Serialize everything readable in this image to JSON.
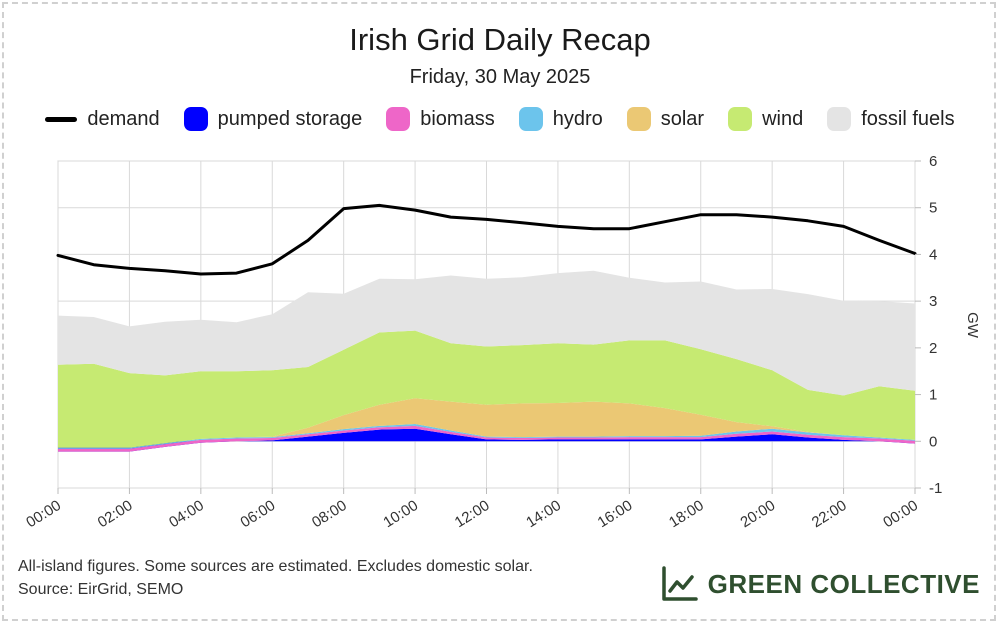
{
  "title": "Irish Grid Daily Recap",
  "subtitle": "Friday, 30 May 2025",
  "legend": [
    {
      "key": "demand",
      "label": "demand",
      "color": "#000000",
      "type": "line"
    },
    {
      "key": "pumped",
      "label": "pumped storage",
      "color": "#0000ff",
      "type": "area"
    },
    {
      "key": "biomass",
      "label": "biomass",
      "color": "#ee66c8",
      "type": "area"
    },
    {
      "key": "hydro",
      "label": "hydro",
      "color": "#6cc4ec",
      "type": "area"
    },
    {
      "key": "solar",
      "label": "solar",
      "color": "#ebc874",
      "type": "area"
    },
    {
      "key": "wind",
      "label": "wind",
      "color": "#c6ea72",
      "type": "area"
    },
    {
      "key": "fossil",
      "label": "fossil fuels",
      "color": "#e4e4e4",
      "type": "area"
    }
  ],
  "footnote": {
    "line1": "All-island figures. Some sources are estimated. Excludes domestic solar.",
    "line2": "Source: EirGrid, SEMO"
  },
  "brand": {
    "name": "GREEN COLLECTIVE",
    "color": "#2f4f2f",
    "icon": "trend-chart-icon"
  },
  "chart_data": {
    "type": "area",
    "stacked": true,
    "title": "Irish Grid Daily Recap",
    "subtitle": "Friday, 30 May 2025",
    "ylabel": "GW",
    "xlabel": "",
    "ylim": [
      -1,
      6
    ],
    "yticks": [
      "-1",
      "0",
      "1",
      "2",
      "3",
      "4",
      "5",
      "6"
    ],
    "xticks": [
      "00:00",
      "02:00",
      "04:00",
      "06:00",
      "08:00",
      "10:00",
      "12:00",
      "14:00",
      "16:00",
      "18:00",
      "20:00",
      "22:00",
      "00:00"
    ],
    "x_hours": [
      0,
      1,
      2,
      3,
      4,
      5,
      6,
      7,
      8,
      9,
      10,
      11,
      12,
      13,
      14,
      15,
      16,
      17,
      18,
      19,
      20,
      21,
      22,
      23,
      24
    ],
    "series": [
      {
        "name": "pumped storage",
        "values": [
          -0.22,
          -0.22,
          -0.22,
          -0.12,
          -0.03,
          0.0,
          0.02,
          0.1,
          0.18,
          0.25,
          0.27,
          0.15,
          0.04,
          0.03,
          0.04,
          0.04,
          0.04,
          0.04,
          0.04,
          0.1,
          0.15,
          0.08,
          0.03,
          0.0,
          -0.05
        ]
      },
      {
        "name": "biomass",
        "values": [
          0.06,
          0.06,
          0.06,
          0.06,
          0.06,
          0.06,
          0.05,
          0.05,
          0.05,
          0.05,
          0.06,
          0.05,
          0.04,
          0.04,
          0.04,
          0.04,
          0.05,
          0.05,
          0.05,
          0.06,
          0.06,
          0.06,
          0.06,
          0.06,
          0.06
        ]
      },
      {
        "name": "hydro",
        "values": [
          0.02,
          0.02,
          0.02,
          0.02,
          0.02,
          0.02,
          0.02,
          0.02,
          0.03,
          0.03,
          0.04,
          0.03,
          0.02,
          0.02,
          0.02,
          0.02,
          0.02,
          0.02,
          0.03,
          0.05,
          0.06,
          0.05,
          0.04,
          0.02,
          0.02
        ]
      },
      {
        "name": "solar",
        "values": [
          0.0,
          0.0,
          0.0,
          0.0,
          0.0,
          0.0,
          0.01,
          0.12,
          0.3,
          0.45,
          0.55,
          0.62,
          0.68,
          0.72,
          0.72,
          0.75,
          0.7,
          0.6,
          0.45,
          0.2,
          0.05,
          0.01,
          0.0,
          0.0,
          0.0
        ]
      },
      {
        "name": "wind",
        "values": [
          1.78,
          1.8,
          1.6,
          1.45,
          1.45,
          1.42,
          1.42,
          1.3,
          1.4,
          1.55,
          1.45,
          1.25,
          1.25,
          1.25,
          1.28,
          1.22,
          1.35,
          1.45,
          1.4,
          1.35,
          1.2,
          0.9,
          0.85,
          1.1,
          1.05
        ]
      },
      {
        "name": "fossil fuels",
        "values": [
          1.05,
          1.0,
          1.0,
          1.15,
          1.1,
          1.05,
          1.2,
          1.6,
          1.2,
          1.15,
          1.1,
          1.45,
          1.45,
          1.45,
          1.5,
          1.58,
          1.34,
          1.24,
          1.45,
          1.49,
          1.74,
          2.05,
          2.03,
          1.82,
          1.87
        ]
      }
    ],
    "demand": {
      "name": "demand",
      "values": [
        3.98,
        3.78,
        3.7,
        3.65,
        3.58,
        3.6,
        3.8,
        4.3,
        4.98,
        5.05,
        4.95,
        4.8,
        4.75,
        4.68,
        4.6,
        4.55,
        4.55,
        4.7,
        4.85,
        4.85,
        4.8,
        4.72,
        4.6,
        4.3,
        4.02
      ]
    }
  }
}
